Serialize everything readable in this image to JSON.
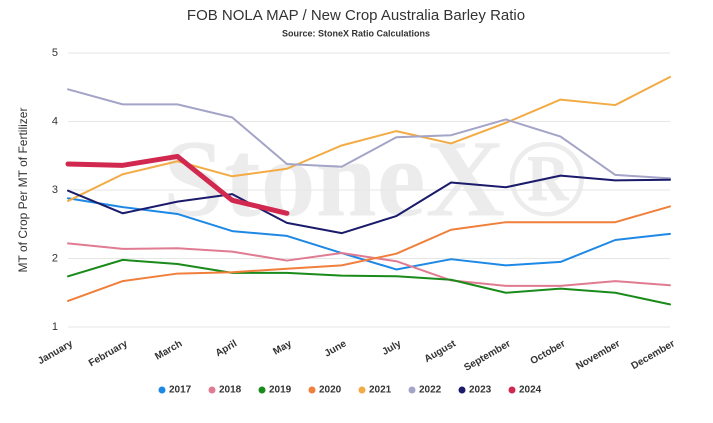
{
  "chart_data": {
    "type": "line",
    "title": "FOB NOLA MAP / New Crop Australia Barley Ratio",
    "subtitle": "Source: StoneX Ratio Calculations",
    "watermark": "StoneX®",
    "y_label": "MT of Crop Per MT of Fertilizer",
    "categories": [
      "January",
      "February",
      "March",
      "April",
      "May",
      "June",
      "July",
      "August",
      "September",
      "October",
      "November",
      "December"
    ],
    "ylim": [
      1,
      5
    ],
    "yticks": [
      1,
      2,
      3,
      4,
      5
    ],
    "grid": true,
    "legend": "bottom",
    "series": [
      {
        "name": "2017",
        "color": "#1e88e5",
        "values": [
          2.88,
          2.75,
          2.65,
          2.4,
          2.33,
          2.08,
          1.84,
          1.99,
          1.9,
          1.95,
          2.27,
          2.36
        ]
      },
      {
        "name": "2018",
        "color": "#e07b91",
        "values": [
          2.22,
          2.14,
          2.15,
          2.1,
          1.97,
          2.08,
          1.96,
          1.68,
          1.6,
          1.6,
          1.67,
          1.61
        ]
      },
      {
        "name": "2019",
        "color": "#1a8a1a",
        "values": [
          1.74,
          1.98,
          1.92,
          1.79,
          1.79,
          1.75,
          1.74,
          1.69,
          1.5,
          1.56,
          1.5,
          1.33
        ]
      },
      {
        "name": "2020",
        "color": "#f07f3c",
        "values": [
          1.38,
          1.67,
          1.78,
          1.8,
          1.85,
          1.9,
          2.07,
          2.42,
          2.53,
          2.53,
          2.53,
          2.76
        ]
      },
      {
        "name": "2021",
        "color": "#f2ab45",
        "values": [
          2.84,
          3.23,
          3.42,
          3.2,
          3.31,
          3.65,
          3.86,
          3.68,
          3.98,
          4.32,
          4.24,
          4.65
        ]
      },
      {
        "name": "2022",
        "color": "#a4a4c8",
        "values": [
          4.47,
          4.25,
          4.25,
          4.06,
          3.38,
          3.34,
          3.77,
          3.8,
          4.03,
          3.78,
          3.22,
          3.17
        ]
      },
      {
        "name": "2023",
        "color": "#1b1b6b",
        "values": [
          2.99,
          2.66,
          2.83,
          2.94,
          2.52,
          2.37,
          2.62,
          3.11,
          3.04,
          3.21,
          3.14,
          3.15
        ]
      },
      {
        "name": "2024",
        "color": "#d0284e",
        "width": 5,
        "values": [
          3.38,
          3.36,
          3.49,
          2.85,
          2.66,
          null,
          null,
          null,
          null,
          null,
          null,
          null
        ]
      }
    ]
  }
}
